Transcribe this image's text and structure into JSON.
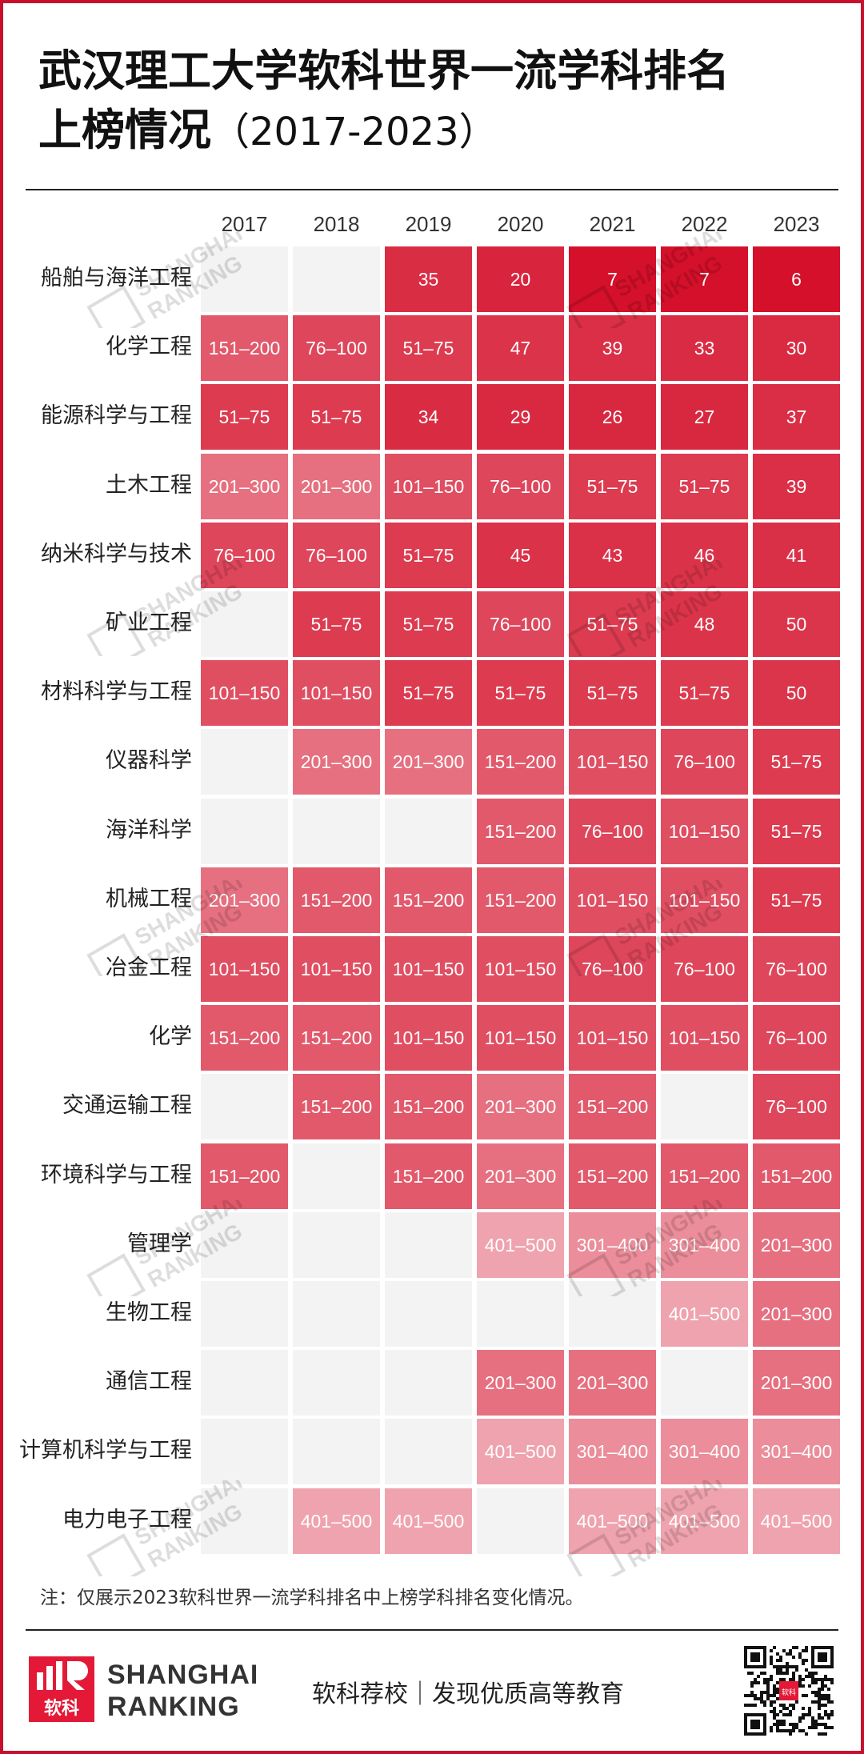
{
  "title": {
    "line1": "武汉理工大学软科世界一流学科排名",
    "line2": "上榜情况",
    "years_range": "（2017-2023）"
  },
  "chart_data": {
    "type": "table",
    "years": [
      "2017",
      "2018",
      "2019",
      "2020",
      "2021",
      "2022",
      "2023"
    ],
    "rows": [
      {
        "subject": "船舶与海洋工程",
        "ranks": [
          "",
          "",
          "35",
          "20",
          "7",
          "7",
          "6"
        ]
      },
      {
        "subject": "化学工程",
        "ranks": [
          "151-200",
          "76-100",
          "51-75",
          "47",
          "39",
          "33",
          "30"
        ]
      },
      {
        "subject": "能源科学与工程",
        "ranks": [
          "51-75",
          "51-75",
          "34",
          "29",
          "26",
          "27",
          "37"
        ]
      },
      {
        "subject": "土木工程",
        "ranks": [
          "201-300",
          "201-300",
          "101-150",
          "76-100",
          "51-75",
          "51-75",
          "39"
        ]
      },
      {
        "subject": "纳米科学与技术",
        "ranks": [
          "76-100",
          "76-100",
          "51-75",
          "45",
          "43",
          "46",
          "41"
        ]
      },
      {
        "subject": "矿业工程",
        "ranks": [
          "",
          "51-75",
          "51-75",
          "76-100",
          "51-75",
          "48",
          "50"
        ]
      },
      {
        "subject": "材料科学与工程",
        "ranks": [
          "101-150",
          "101-150",
          "51-75",
          "51-75",
          "51-75",
          "51-75",
          "50"
        ]
      },
      {
        "subject": "仪器科学",
        "ranks": [
          "",
          "201-300",
          "201-300",
          "151-200",
          "101-150",
          "76-100",
          "51-75"
        ]
      },
      {
        "subject": "海洋科学",
        "ranks": [
          "",
          "",
          "",
          "151-200",
          "76-100",
          "101-150",
          "51-75"
        ]
      },
      {
        "subject": "机械工程",
        "ranks": [
          "201-300",
          "151-200",
          "151-200",
          "151-200",
          "101-150",
          "101-150",
          "51-75"
        ]
      },
      {
        "subject": "冶金工程",
        "ranks": [
          "101-150",
          "101-150",
          "101-150",
          "101-150",
          "76-100",
          "76-100",
          "76-100"
        ]
      },
      {
        "subject": "化学",
        "ranks": [
          "151-200",
          "151-200",
          "101-150",
          "101-150",
          "101-150",
          "101-150",
          "76-100"
        ]
      },
      {
        "subject": "交通运输工程",
        "ranks": [
          "",
          "151-200",
          "151-200",
          "201-300",
          "151-200",
          "",
          "76-100"
        ]
      },
      {
        "subject": "环境科学与工程",
        "ranks": [
          "151-200",
          "",
          "151-200",
          "201-300",
          "151-200",
          "151-200",
          "151-200"
        ]
      },
      {
        "subject": "管理学",
        "ranks": [
          "",
          "",
          "",
          "401-500",
          "301-400",
          "301-400",
          "201-300"
        ]
      },
      {
        "subject": "生物工程",
        "ranks": [
          "",
          "",
          "",
          "",
          "",
          "401-500",
          "201-300"
        ]
      },
      {
        "subject": "通信工程",
        "ranks": [
          "",
          "",
          "",
          "201-300",
          "201-300",
          "",
          "201-300"
        ]
      },
      {
        "subject": "计算机科学与工程",
        "ranks": [
          "",
          "",
          "",
          "401-500",
          "301-400",
          "301-400",
          "301-400"
        ]
      },
      {
        "subject": "电力电子工程",
        "ranks": [
          "",
          "401-500",
          "401-500",
          "",
          "401-500",
          "401-500",
          "401-500"
        ]
      }
    ]
  },
  "colors": {
    "frame": "#c8102e",
    "empty_cell": "#f3f3f3"
  },
  "note": "注：仅展示2023软科世界一流学科排名中上榜学科排名变化情况。",
  "footer": {
    "logo_glyph": "软科",
    "logo_line1": "SHANGHAI",
    "logo_line2": "RANKING",
    "slogan": "软科荐校｜发现优质高等教育",
    "qr_badge": "软科"
  },
  "watermark": {
    "line1": "SHANGHAI",
    "line2": "RANKING"
  }
}
